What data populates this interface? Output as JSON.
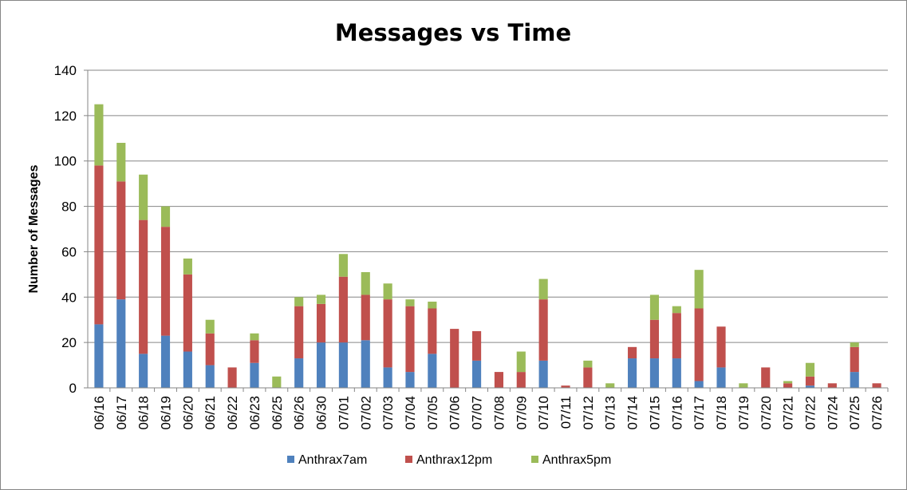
{
  "chart_data": {
    "type": "bar",
    "stacked": true,
    "title": "Messages vs Time",
    "xlabel": "",
    "ylabel": "Number of Messages",
    "ylim": [
      0,
      140
    ],
    "yticks": [
      0,
      20,
      40,
      60,
      80,
      100,
      120,
      140
    ],
    "grid": true,
    "legend_position": "bottom",
    "categories": [
      "06/16",
      "06/17",
      "06/18",
      "06/19",
      "06/20",
      "06/21",
      "06/22",
      "06/23",
      "06/25",
      "06/26",
      "06/30",
      "07/01",
      "07/02",
      "07/03",
      "07/04",
      "07/05",
      "07/06",
      "07/07",
      "07/08",
      "07/09",
      "07/10",
      "07/11",
      "07/12",
      "07/13",
      "07/14",
      "07/15",
      "07/16",
      "07/17",
      "07/18",
      "07/19",
      "07/20",
      "07/21",
      "07/22",
      "07/24",
      "07/25",
      "07/26"
    ],
    "series": [
      {
        "name": "Anthrax7am",
        "color": "#4F81BD",
        "values": [
          28,
          39,
          15,
          23,
          16,
          10,
          0,
          11,
          0,
          13,
          20,
          20,
          21,
          9,
          7,
          15,
          0,
          12,
          0,
          0,
          12,
          0,
          0,
          0,
          13,
          13,
          13,
          3,
          9,
          0,
          0,
          0,
          1,
          0,
          7,
          0
        ]
      },
      {
        "name": "Anthrax12pm",
        "color": "#C0504D",
        "values": [
          70,
          52,
          59,
          48,
          34,
          14,
          9,
          10,
          0,
          23,
          17,
          29,
          20,
          30,
          29,
          20,
          26,
          13,
          7,
          7,
          27,
          1,
          9,
          0,
          5,
          17,
          20,
          32,
          18,
          0,
          9,
          2,
          4,
          2,
          11,
          2
        ]
      },
      {
        "name": "Anthrax5pm",
        "color": "#9BBB59",
        "values": [
          27,
          17,
          20,
          9,
          7,
          6,
          0,
          3,
          5,
          4,
          4,
          10,
          10,
          7,
          3,
          3,
          0,
          0,
          0,
          9,
          9,
          0,
          3,
          2,
          0,
          11,
          3,
          17,
          0,
          2,
          0,
          1,
          6,
          0,
          2,
          0
        ]
      }
    ]
  }
}
